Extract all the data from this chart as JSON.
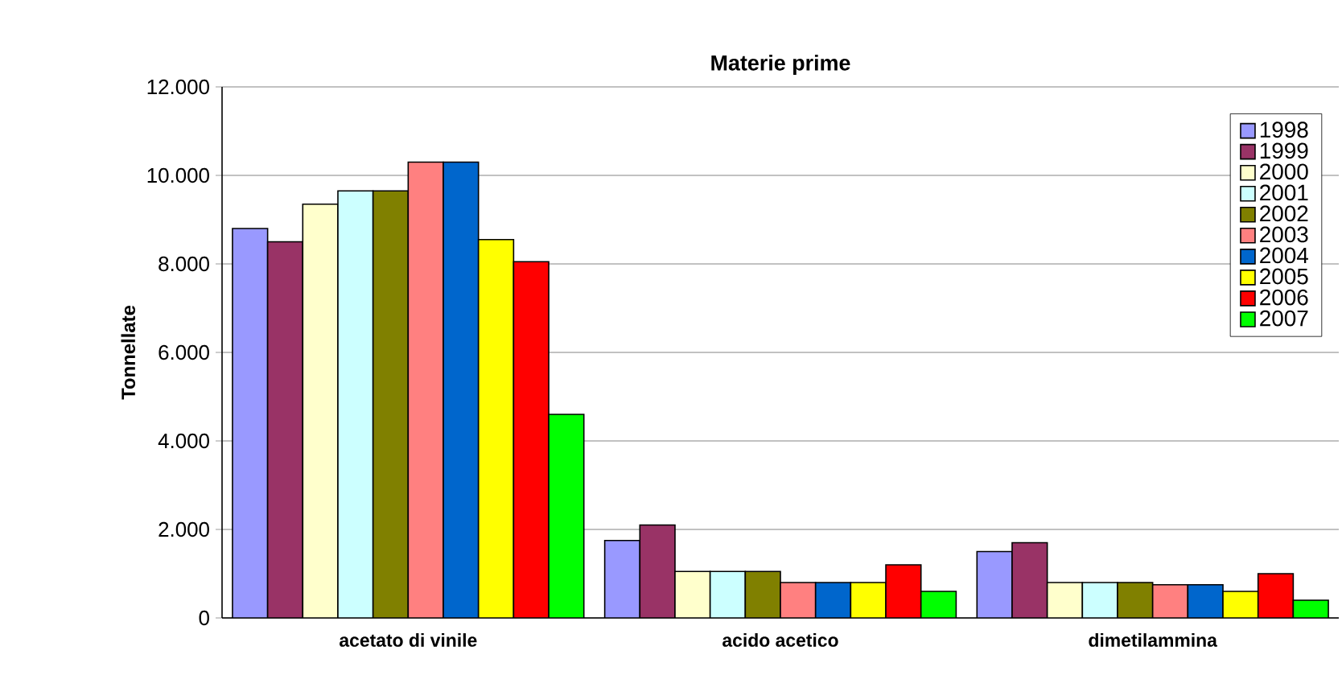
{
  "chart_data": {
    "type": "bar",
    "title": "Materie prime",
    "ylabel": "Tonnellate",
    "categories": [
      "acetato di vinile",
      "acido acetico",
      "dimetilammina"
    ],
    "series": [
      {
        "name": "1998",
        "color": "#9999ff",
        "values": [
          8800,
          1750,
          1500
        ]
      },
      {
        "name": "1999",
        "color": "#993366",
        "values": [
          8500,
          2100,
          1700
        ]
      },
      {
        "name": "2000",
        "color": "#ffffcc",
        "values": [
          9350,
          1050,
          800
        ]
      },
      {
        "name": "2001",
        "color": "#ccffff",
        "values": [
          9650,
          1050,
          800
        ]
      },
      {
        "name": "2002",
        "color": "#808000",
        "values": [
          9650,
          1050,
          800
        ]
      },
      {
        "name": "2003",
        "color": "#ff8080",
        "values": [
          10300,
          800,
          750
        ]
      },
      {
        "name": "2004",
        "color": "#0066cc",
        "values": [
          10300,
          800,
          750
        ]
      },
      {
        "name": "2005",
        "color": "#ffff00",
        "values": [
          8550,
          800,
          600
        ]
      },
      {
        "name": "2006",
        "color": "#ff0000",
        "values": [
          8050,
          1200,
          1000
        ]
      },
      {
        "name": "2007",
        "color": "#00ff00",
        "values": [
          4600,
          600,
          400
        ]
      }
    ],
    "ylim": [
      0,
      12000
    ],
    "yticks": [
      0,
      {
        "value": 2000,
        "label": "2.000"
      },
      {
        "value": 4000,
        "label": "4.000"
      },
      {
        "value": 6000,
        "label": "6.000"
      },
      {
        "value": 8000,
        "label": "8.000"
      },
      {
        "value": 10000,
        "label": "10.000"
      },
      {
        "value": 12000,
        "label": "12.000"
      }
    ],
    "grid": "y",
    "legend": "top right"
  }
}
